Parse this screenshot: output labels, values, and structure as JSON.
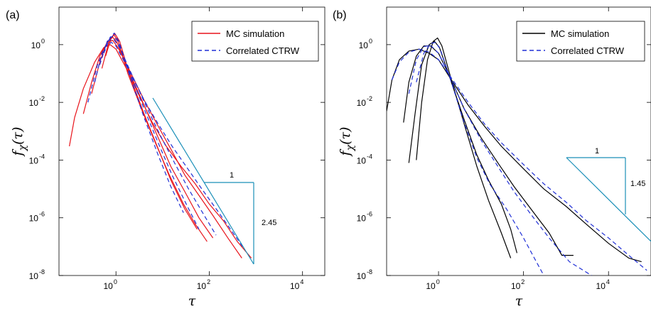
{
  "chart_data": [
    {
      "type": "line",
      "panel_label": "(a)",
      "xlabel": "τ",
      "ylabel": "f_χ(τ)",
      "x_scale": "log",
      "y_scale": "log",
      "xlim": [
        0.06,
        30000
      ],
      "ylim": [
        1e-08,
        20
      ],
      "x_ticks": [
        {
          "v": 1,
          "label": "10",
          "exp": "0"
        },
        {
          "v": 100,
          "label": "10",
          "exp": "2"
        },
        {
          "v": 10000,
          "label": "10",
          "exp": "4"
        }
      ],
      "y_ticks": [
        {
          "v": 1,
          "label": "10",
          "exp": "0"
        },
        {
          "v": 0.01,
          "label": "10",
          "exp": "-2"
        },
        {
          "v": 0.0001,
          "label": "10",
          "exp": "-4"
        },
        {
          "v": 1e-06,
          "label": "10",
          "exp": "-6"
        },
        {
          "v": 1e-08,
          "label": "10",
          "exp": "-8"
        }
      ],
      "legend": {
        "position": "top-right",
        "entries": [
          {
            "label": "MC simulation",
            "style": "solid",
            "color": "#e8141b"
          },
          {
            "label": "Correlated CTRW",
            "style": "dashed",
            "color": "#1f2fd6"
          }
        ]
      },
      "series": [
        {
          "style": "solid",
          "color": "#e8141b",
          "points": [
            [
              0.1,
              0.0003
            ],
            [
              0.13,
              0.003
            ],
            [
              0.2,
              0.03
            ],
            [
              0.35,
              0.25
            ],
            [
              0.55,
              0.8
            ],
            [
              0.75,
              1.0
            ],
            [
              1,
              0.7
            ],
            [
              1.8,
              0.12
            ],
            [
              3,
              0.02
            ],
            [
              6,
              0.002
            ],
            [
              12,
              0.0003
            ],
            [
              25,
              6e-05
            ],
            [
              50,
              1.5e-05
            ],
            [
              100,
              3e-06
            ],
            [
              200,
              8e-07
            ],
            [
              400,
              1.5e-07
            ],
            [
              800,
              4e-08
            ]
          ]
        },
        {
          "style": "solid",
          "color": "#e8141b",
          "points": [
            [
              0.2,
              0.004
            ],
            [
              0.3,
              0.05
            ],
            [
              0.45,
              0.4
            ],
            [
              0.65,
              1.2
            ],
            [
              0.85,
              1.4
            ],
            [
              1.1,
              0.8
            ],
            [
              2,
              0.12
            ],
            [
              4,
              0.012
            ],
            [
              8,
              0.0015
            ],
            [
              16,
              0.0002
            ],
            [
              30,
              3e-05
            ],
            [
              60,
              6e-06
            ],
            [
              120,
              1.2e-06
            ],
            [
              250,
              2e-07
            ],
            [
              500,
              4e-08
            ]
          ]
        },
        {
          "style": "solid",
          "color": "#e8141b",
          "points": [
            [
              0.3,
              0.02
            ],
            [
              0.45,
              0.25
            ],
            [
              0.65,
              1.3
            ],
            [
              0.85,
              1.8
            ],
            [
              1.05,
              1.2
            ],
            [
              2,
              0.1
            ],
            [
              4,
              0.008
            ],
            [
              8,
              0.0006
            ],
            [
              15,
              6e-05
            ],
            [
              30,
              8e-06
            ],
            [
              60,
              1e-06
            ],
            [
              120,
              2e-07
            ]
          ]
        },
        {
          "style": "solid",
          "color": "#e8141b",
          "points": [
            [
              0.5,
              0.15
            ],
            [
              0.7,
              1.2
            ],
            [
              0.9,
              2.2
            ],
            [
              1.1,
              1.4
            ],
            [
              1.8,
              0.1
            ],
            [
              3.5,
              0.006
            ],
            [
              7,
              0.0004
            ],
            [
              14,
              3e-05
            ],
            [
              28,
              3e-06
            ],
            [
              50,
              6e-07
            ],
            [
              90,
              1.5e-07
            ]
          ]
        },
        {
          "style": "solid",
          "color": "#e8141b",
          "points": [
            [
              0.6,
              0.4
            ],
            [
              0.8,
              1.8
            ],
            [
              0.95,
              2.4
            ],
            [
              1.2,
              1.3
            ],
            [
              2,
              0.08
            ],
            [
              4,
              0.004
            ],
            [
              8,
              0.00025
            ],
            [
              15,
              2e-05
            ],
            [
              30,
              2e-06
            ],
            [
              55,
              4e-07
            ]
          ]
        },
        {
          "style": "dashed",
          "color": "#1f2fd6",
          "points": [
            [
              0.25,
              0.01
            ],
            [
              0.4,
              0.2
            ],
            [
              0.6,
              0.9
            ],
            [
              0.8,
              1.2
            ],
            [
              1,
              0.9
            ],
            [
              1.8,
              0.15
            ],
            [
              4,
              0.012
            ],
            [
              8,
              0.0018
            ],
            [
              16,
              0.0003
            ],
            [
              32,
              6e-05
            ],
            [
              64,
              1.2e-05
            ],
            [
              128,
              2.5e-06
            ],
            [
              260,
              5e-07
            ],
            [
              520,
              1e-07
            ]
          ]
        },
        {
          "style": "dashed",
          "color": "#1f2fd6",
          "points": [
            [
              0.35,
              0.05
            ],
            [
              0.5,
              0.5
            ],
            [
              0.7,
              1.4
            ],
            [
              0.9,
              1.5
            ],
            [
              1.2,
              0.8
            ],
            [
              2.2,
              0.09
            ],
            [
              4.5,
              0.007
            ],
            [
              9,
              0.0007
            ],
            [
              18,
              8e-05
            ],
            [
              36,
              1e-05
            ],
            [
              72,
              1.5e-06
            ],
            [
              140,
              2.5e-07
            ]
          ]
        },
        {
          "style": "dashed",
          "color": "#1f2fd6",
          "points": [
            [
              0.45,
              0.2
            ],
            [
              0.65,
              1.3
            ],
            [
              0.85,
              2.0
            ],
            [
              1.1,
              1.3
            ],
            [
              2,
              0.1
            ],
            [
              4,
              0.006
            ],
            [
              8,
              0.0004
            ],
            [
              16,
              3e-05
            ],
            [
              32,
              3e-06
            ],
            [
              60,
              4e-07
            ]
          ]
        },
        {
          "style": "dashed",
          "color": "#1f2fd6",
          "points": [
            [
              0.55,
              0.5
            ],
            [
              0.75,
              1.8
            ],
            [
              0.92,
              2.5
            ],
            [
              1.15,
              1.3
            ],
            [
              2,
              0.08
            ],
            [
              4,
              0.003
            ],
            [
              8,
              0.00015
            ],
            [
              15,
              1.2e-05
            ],
            [
              28,
              1.5e-06
            ]
          ]
        }
      ],
      "triangle": {
        "top_label": "1",
        "side_label": "2.45",
        "color": "#1a8fb8"
      }
    },
    {
      "type": "line",
      "panel_label": "(b)",
      "xlabel": "τ",
      "ylabel": "f_χ(τ)",
      "x_scale": "log",
      "y_scale": "log",
      "xlim": [
        0.06,
        100000
      ],
      "ylim": [
        1e-08,
        20
      ],
      "x_ticks": [
        {
          "v": 1,
          "label": "10",
          "exp": "0"
        },
        {
          "v": 100,
          "label": "10",
          "exp": "2"
        },
        {
          "v": 10000,
          "label": "10",
          "exp": "4"
        }
      ],
      "y_ticks": [
        {
          "v": 1,
          "label": "10",
          "exp": "0"
        },
        {
          "v": 0.01,
          "label": "10",
          "exp": "-2"
        },
        {
          "v": 0.0001,
          "label": "10",
          "exp": "-4"
        },
        {
          "v": 1e-06,
          "label": "10",
          "exp": "-6"
        },
        {
          "v": 1e-08,
          "label": "10",
          "exp": "-8"
        }
      ],
      "legend": {
        "position": "top-right",
        "entries": [
          {
            "label": "MC simulation",
            "style": "solid",
            "color": "#000000"
          },
          {
            "label": "Correlated CTRW",
            "style": "dashed",
            "color": "#1f2fd6"
          }
        ]
      },
      "series": [
        {
          "style": "solid",
          "color": "#000000",
          "points": [
            [
              0.06,
              0.005
            ],
            [
              0.08,
              0.06
            ],
            [
              0.12,
              0.3
            ],
            [
              0.2,
              0.6
            ],
            [
              0.35,
              0.7
            ],
            [
              0.6,
              0.5
            ],
            [
              1,
              0.3
            ],
            [
              2,
              0.06
            ],
            [
              5,
              0.008
            ],
            [
              12,
              0.0015
            ],
            [
              30,
              0.0003
            ],
            [
              100,
              5e-05
            ],
            [
              300,
              1e-05
            ],
            [
              1000,
              2.5e-06
            ],
            [
              3000,
              6e-07
            ],
            [
              10000,
              1.3e-07
            ],
            [
              30000,
              4e-08
            ],
            [
              60000,
              3e-08
            ]
          ]
        },
        {
          "style": "solid",
          "color": "#000000",
          "points": [
            [
              0.15,
              0.002
            ],
            [
              0.2,
              0.05
            ],
            [
              0.3,
              0.4
            ],
            [
              0.45,
              0.9
            ],
            [
              0.65,
              0.9
            ],
            [
              1,
              0.5
            ],
            [
              2,
              0.06
            ],
            [
              4,
              0.006
            ],
            [
              10,
              0.0006
            ],
            [
              25,
              8e-05
            ],
            [
              60,
              1.2e-05
            ],
            [
              150,
              2e-06
            ],
            [
              400,
              3e-07
            ],
            [
              800,
              5e-08
            ],
            [
              1500,
              5e-08
            ]
          ]
        },
        {
          "style": "solid",
          "color": "#000000",
          "points": [
            [
              0.2,
              8e-05
            ],
            [
              0.28,
              0.004
            ],
            [
              0.4,
              0.2
            ],
            [
              0.6,
              1.0
            ],
            [
              0.8,
              1.3
            ],
            [
              1.05,
              0.8
            ],
            [
              2,
              0.05
            ],
            [
              4,
              0.0025
            ],
            [
              8,
              0.00015
            ],
            [
              15,
              2e-05
            ],
            [
              30,
              3e-06
            ],
            [
              50,
              4e-07
            ],
            [
              70,
              6e-08
            ]
          ]
        },
        {
          "style": "solid",
          "color": "#000000",
          "points": [
            [
              0.3,
              0.0001
            ],
            [
              0.4,
              0.01
            ],
            [
              0.55,
              0.3
            ],
            [
              0.75,
              1.3
            ],
            [
              0.95,
              1.7
            ],
            [
              1.2,
              0.9
            ],
            [
              2,
              0.06
            ],
            [
              4,
              0.0018
            ],
            [
              8,
              6e-05
            ],
            [
              15,
              4e-06
            ],
            [
              30,
              3e-07
            ],
            [
              50,
              4e-08
            ]
          ]
        },
        {
          "style": "dashed",
          "color": "#1f2fd6",
          "points": [
            [
              0.08,
              0.06
            ],
            [
              0.12,
              0.25
            ],
            [
              0.2,
              0.55
            ],
            [
              0.35,
              0.7
            ],
            [
              0.6,
              0.55
            ],
            [
              1,
              0.3
            ],
            [
              2,
              0.07
            ],
            [
              5,
              0.01
            ],
            [
              12,
              0.0018
            ],
            [
              30,
              0.0004
            ],
            [
              100,
              7e-05
            ],
            [
              300,
              1.5e-05
            ],
            [
              1000,
              3.5e-06
            ],
            [
              3000,
              8e-07
            ],
            [
              10000,
              2e-07
            ],
            [
              30000,
              5e-08
            ],
            [
              80000,
              1.5e-08
            ]
          ]
        },
        {
          "style": "dashed",
          "color": "#1f2fd6",
          "points": [
            [
              0.2,
              0.02
            ],
            [
              0.3,
              0.3
            ],
            [
              0.45,
              0.85
            ],
            [
              0.65,
              0.95
            ],
            [
              1,
              0.5
            ],
            [
              2,
              0.06
            ],
            [
              4,
              0.006
            ],
            [
              10,
              0.0005
            ],
            [
              25,
              6e-05
            ],
            [
              60,
              8e-06
            ],
            [
              150,
              1.3e-06
            ],
            [
              400,
              2e-07
            ],
            [
              1200,
              3e-08
            ],
            [
              4000,
              1e-08
            ]
          ]
        },
        {
          "style": "dashed",
          "color": "#1f2fd6",
          "points": [
            [
              0.3,
              0.05
            ],
            [
              0.45,
              0.5
            ],
            [
              0.65,
              1.1
            ],
            [
              0.85,
              1.2
            ],
            [
              1.1,
              0.7
            ],
            [
              2,
              0.05
            ],
            [
              4,
              0.002
            ],
            [
              8,
              0.00012
            ],
            [
              16,
              1.5e-05
            ],
            [
              40,
              2e-06
            ],
            [
              100,
              2e-07
            ],
            [
              200,
              3e-08
            ],
            [
              300,
              1e-08
            ]
          ]
        }
      ],
      "triangle": {
        "top_label": "1",
        "side_label": "1.45",
        "color": "#1a8fb8"
      }
    }
  ]
}
